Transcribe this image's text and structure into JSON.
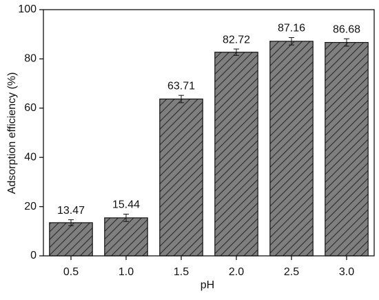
{
  "chart_data": {
    "type": "bar",
    "x_label": "pH",
    "y_label": "Adsorption efficiency (%)",
    "categories": [
      "0.5",
      "1.0",
      "1.5",
      "2.0",
      "2.5",
      "3.0"
    ],
    "values": [
      13.47,
      15.44,
      63.71,
      82.72,
      87.16,
      86.68
    ],
    "errors": [
      1.2,
      1.5,
      1.5,
      1.3,
      1.5,
      1.5
    ],
    "color": "#7f7f7f",
    "ylim": [
      0,
      100
    ],
    "yticks": [
      0,
      20,
      40,
      60,
      80,
      100
    ]
  }
}
